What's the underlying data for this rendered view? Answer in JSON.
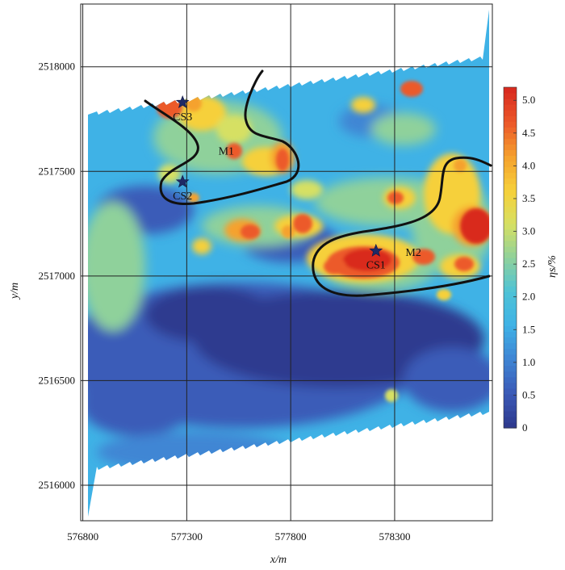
{
  "map": {
    "xlabel": "x/m",
    "ylabel": "y/m",
    "colorbar_label": "ηs/%",
    "x_ticks": [
      {
        "value": 576800,
        "label": "576800"
      },
      {
        "value": 577300,
        "label": "577300"
      },
      {
        "value": 577800,
        "label": "577800"
      },
      {
        "value": 578300,
        "label": "578300"
      }
    ],
    "y_ticks": [
      {
        "value": 2516000,
        "label": "2516000"
      },
      {
        "value": 2516500,
        "label": "2516500"
      },
      {
        "value": 2517000,
        "label": "2517000"
      },
      {
        "value": 2517500,
        "label": "2517500"
      },
      {
        "value": 2518000,
        "label": "2518000"
      }
    ],
    "x_range": [
      576790,
      578770
    ],
    "y_range": [
      2515830,
      2518300
    ],
    "colorbar_ticks": [
      "0",
      "0.5",
      "1.0",
      "1.5",
      "2.0",
      "2.5",
      "3.0",
      "3.5",
      "4.0",
      "4.5",
      "5.0"
    ],
    "colorbar_range": [
      0,
      5.2
    ],
    "colors": [
      "#2e3a8f",
      "#3b5bb8",
      "#3f86d4",
      "#3fb2e6",
      "#4fc3d6",
      "#8fd19b",
      "#d6e063",
      "#f6d03a",
      "#f5a22e",
      "#ec5a2a",
      "#d92b1f"
    ],
    "sites": [
      {
        "label": "CS1",
        "x": 578210,
        "y": 2517120
      },
      {
        "label": "CS2",
        "x": 577280,
        "y": 2517450
      },
      {
        "label": "CS3",
        "x": 577280,
        "y": 2517830
      }
    ],
    "zones": [
      {
        "label": "M1",
        "x": 577490,
        "y": 2517580
      },
      {
        "label": "M2",
        "x": 578390,
        "y": 2517095
      }
    ]
  }
}
